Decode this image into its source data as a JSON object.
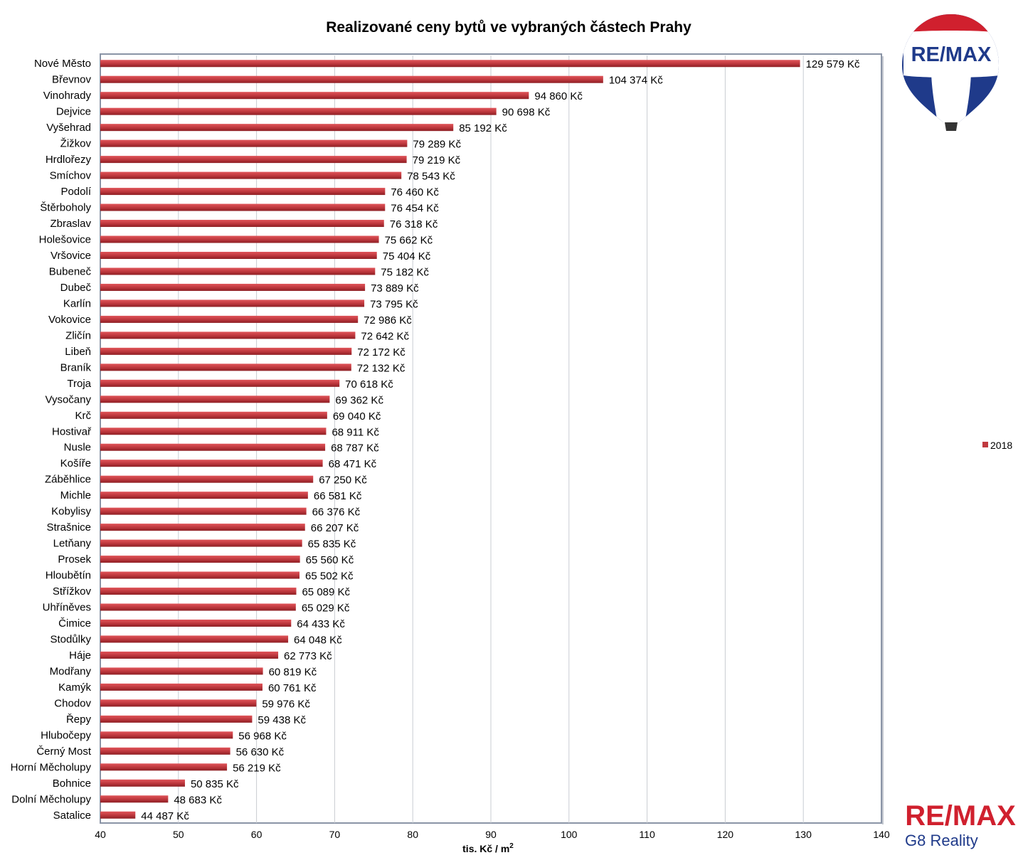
{
  "chart_data": {
    "type": "bar",
    "orientation": "horizontal",
    "title": "Realizované ceny bytů ve vybraných částech Prahy",
    "xlabel": "tis. Kč / m",
    "xlabel_superscript": "2",
    "ylabel": "",
    "xlim": [
      40,
      140
    ],
    "xticks": [
      40,
      50,
      60,
      70,
      80,
      90,
      100,
      110,
      120,
      130,
      140
    ],
    "grid": "vertical",
    "legend_position": "right",
    "bar_color": "#c0393f",
    "categories": [
      "Nové Město",
      "Břevnov",
      "Vinohrady",
      "Dejvice",
      "Vyšehrad",
      "Žižkov",
      "Hrdlořezy",
      "Smíchov",
      "Podolí",
      "Štěrboholy",
      "Zbraslav",
      "Holešovice",
      "Vršovice",
      "Bubeneč",
      "Dubeč",
      "Karlín",
      "Vokovice",
      "Zličín",
      "Libeň",
      "Braník",
      "Troja",
      "Vysočany",
      "Krč",
      "Hostivař",
      "Nusle",
      "Košíře",
      "Záběhlice",
      "Michle",
      "Kobylisy",
      "Strašnice",
      "Letňany",
      "Prosek",
      "Hloubětín",
      "Střížkov",
      "Uhříněves",
      "Čimice",
      "Stodůlky",
      "Háje",
      "Modřany",
      "Kamýk",
      "Chodov",
      "Řepy",
      "Hlubočepy",
      "Černý Most",
      "Horní Měcholupy",
      "Bohnice",
      "Dolní Měcholupy",
      "Satalice"
    ],
    "series": [
      {
        "name": "2018",
        "values": [
          129.579,
          104.374,
          94.86,
          90.698,
          85.192,
          79.289,
          79.219,
          78.543,
          76.46,
          76.454,
          76.318,
          75.662,
          75.404,
          75.182,
          73.889,
          73.795,
          72.986,
          72.642,
          72.172,
          72.132,
          70.618,
          69.362,
          69.04,
          68.911,
          68.787,
          68.471,
          67.25,
          66.581,
          66.376,
          66.207,
          65.835,
          65.56,
          65.502,
          65.089,
          65.029,
          64.433,
          64.048,
          62.773,
          60.819,
          60.761,
          59.976,
          59.438,
          56.968,
          56.63,
          56.219,
          50.835,
          48.683,
          44.487
        ],
        "data_labels": [
          "129 579 Kč",
          "104 374 Kč",
          "94 860 Kč",
          "90 698 Kč",
          "85 192 Kč",
          "79 289 Kč",
          "79 219 Kč",
          "78 543 Kč",
          "76 460 Kč",
          "76 454 Kč",
          "76 318 Kč",
          "75 662 Kč",
          "75 404 Kč",
          "75 182 Kč",
          "73 889 Kč",
          "73 795 Kč",
          "72 986 Kč",
          "72 642 Kč",
          "72 172 Kč",
          "72 132 Kč",
          "70 618 Kč",
          "69 362 Kč",
          "69 040 Kč",
          "68 911 Kč",
          "68 787 Kč",
          "68 471 Kč",
          "67 250 Kč",
          "66 581 Kč",
          "66 376 Kč",
          "66 207 Kč",
          "65 835 Kč",
          "65 560 Kč",
          "65 502 Kč",
          "65 089 Kč",
          "65 029 Kč",
          "64 433 Kč",
          "64 048 Kč",
          "62 773 Kč",
          "60 819 Kč",
          "60 761 Kč",
          "59 976 Kč",
          "59 438 Kč",
          "56 968 Kč",
          "56 630 Kč",
          "56 219 Kč",
          "50 835 Kč",
          "48 683 Kč",
          "44 487 Kč"
        ]
      }
    ]
  },
  "logos": {
    "balloon_text": "RE/MAX",
    "brand_text": "RE/MAX",
    "brand_subtitle": "G8 Reality",
    "brand_red": "#d0202e",
    "brand_blue": "#1f3a8a"
  }
}
